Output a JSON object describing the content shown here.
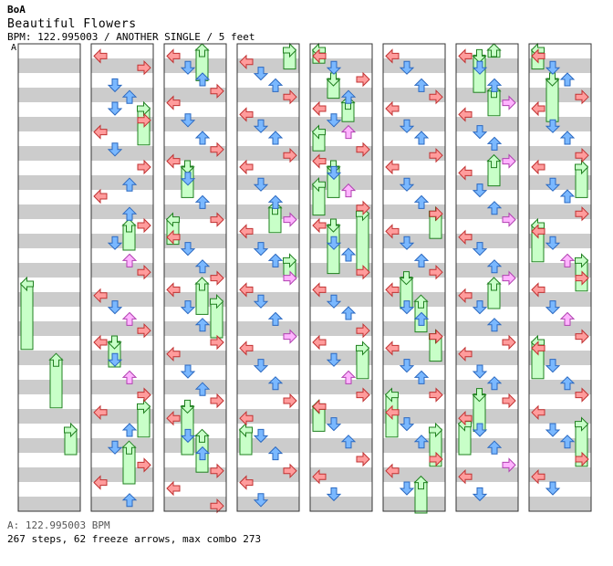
{
  "header": {
    "artist": "BoA",
    "title": "Beautiful Flowers",
    "meta": "BPM: 122.995003 / ANOTHER SINGLE / 5 feet",
    "marker": "A"
  },
  "footer": {
    "bpm_line": "A: 122.995003 BPM",
    "stats_line": "267 steps, 62 freeze arrows, max combo 273"
  },
  "chart_data": {
    "type": "step-chart",
    "lanes": [
      "left",
      "down",
      "up",
      "right"
    ],
    "colors": {
      "left_right": "#ff9c9c",
      "left_right_stroke": "#c03030",
      "down_up": "#7ab8ff",
      "down_up_stroke": "#2a68c0",
      "offbeat": "#ffb4ff",
      "offbeat_stroke": "#b040b0",
      "freeze": "#c8ffc8",
      "freeze_stroke": "#208020",
      "band": "#cccccc"
    },
    "measures_per_column": 8,
    "columns": [
      {
        "notes": [],
        "freezes": [
          [
            0,
            4.0,
            5.2
          ],
          [
            2,
            5.3,
            6.2
          ],
          [
            3,
            6.5,
            7.0
          ]
        ]
      },
      {
        "notes": [
          [
            0,
            0.1
          ],
          [
            3,
            0.3
          ],
          [
            1,
            0.6
          ],
          [
            2,
            0.8
          ],
          [
            1,
            1.0
          ],
          [
            3,
            1.2
          ],
          [
            0,
            1.4
          ],
          [
            1,
            1.7
          ],
          [
            3,
            2.0
          ],
          [
            2,
            2.3
          ],
          [
            0,
            2.5
          ],
          [
            2,
            2.8
          ],
          [
            3,
            3.0
          ],
          [
            1,
            3.3
          ],
          [
            2,
            3.6
          ],
          [
            3,
            3.8
          ],
          [
            0,
            4.2
          ],
          [
            1,
            4.4
          ],
          [
            2,
            4.6
          ],
          [
            3,
            4.8
          ],
          [
            0,
            5.0
          ],
          [
            1,
            5.3
          ],
          [
            2,
            5.6
          ],
          [
            3,
            5.9
          ],
          [
            0,
            6.2
          ],
          [
            2,
            6.5
          ],
          [
            1,
            6.8
          ],
          [
            3,
            7.1
          ],
          [
            0,
            7.4
          ],
          [
            2,
            7.7
          ]
        ],
        "freezes": [
          [
            3,
            1.0,
            1.7
          ],
          [
            2,
            3.0,
            3.5
          ],
          [
            1,
            5.0,
            5.5
          ],
          [
            3,
            6.1,
            6.7
          ],
          [
            2,
            6.8,
            7.5
          ]
        ]
      },
      {
        "notes": [
          [
            0,
            0.1
          ],
          [
            1,
            0.3
          ],
          [
            2,
            0.5
          ],
          [
            3,
            0.7
          ],
          [
            0,
            0.9
          ],
          [
            1,
            1.2
          ],
          [
            2,
            1.5
          ],
          [
            3,
            1.7
          ],
          [
            0,
            1.9
          ],
          [
            1,
            2.2
          ],
          [
            2,
            2.6
          ],
          [
            3,
            2.9
          ],
          [
            0,
            3.2
          ],
          [
            1,
            3.4
          ],
          [
            2,
            3.7
          ],
          [
            3,
            3.9
          ],
          [
            0,
            4.1
          ],
          [
            1,
            4.4
          ],
          [
            2,
            4.7
          ],
          [
            3,
            5.0
          ],
          [
            0,
            5.2
          ],
          [
            1,
            5.5
          ],
          [
            2,
            5.8
          ],
          [
            3,
            6.0
          ],
          [
            0,
            6.3
          ],
          [
            1,
            6.6
          ],
          [
            2,
            6.9
          ],
          [
            3,
            7.2
          ],
          [
            0,
            7.5
          ],
          [
            3,
            7.8
          ]
        ],
        "freezes": [
          [
            2,
            0.0,
            0.6
          ],
          [
            1,
            2.0,
            2.6
          ],
          [
            0,
            2.9,
            3.4
          ],
          [
            2,
            4.0,
            4.6
          ],
          [
            3,
            4.3,
            5.0
          ],
          [
            1,
            6.1,
            7.0
          ],
          [
            2,
            6.6,
            7.3
          ]
        ]
      },
      {
        "notes": [
          [
            0,
            0.2
          ],
          [
            1,
            0.4
          ],
          [
            2,
            0.6
          ],
          [
            3,
            0.8
          ],
          [
            0,
            1.1
          ],
          [
            1,
            1.3
          ],
          [
            2,
            1.5
          ],
          [
            3,
            1.8
          ],
          [
            0,
            2.0
          ],
          [
            1,
            2.3
          ],
          [
            2,
            2.6
          ],
          [
            3,
            2.9
          ],
          [
            0,
            3.1
          ],
          [
            1,
            3.4
          ],
          [
            2,
            3.6
          ],
          [
            3,
            3.9
          ],
          [
            0,
            4.1
          ],
          [
            1,
            4.3
          ],
          [
            2,
            4.6
          ],
          [
            3,
            4.9
          ],
          [
            0,
            5.1
          ],
          [
            1,
            5.4
          ],
          [
            2,
            5.7
          ],
          [
            3,
            6.0
          ],
          [
            0,
            6.3
          ],
          [
            1,
            6.6
          ],
          [
            2,
            6.9
          ],
          [
            3,
            7.2
          ],
          [
            0,
            7.4
          ],
          [
            1,
            7.7
          ]
        ],
        "freezes": [
          [
            3,
            0.0,
            0.4
          ],
          [
            2,
            2.7,
            3.2
          ],
          [
            3,
            3.6,
            4.0
          ],
          [
            0,
            6.5,
            7.0
          ]
        ]
      },
      {
        "notes": [
          [
            0,
            0.1
          ],
          [
            1,
            0.3
          ],
          [
            3,
            0.5
          ],
          [
            2,
            0.8
          ],
          [
            0,
            1.0
          ],
          [
            1,
            1.2
          ],
          [
            2,
            1.4
          ],
          [
            3,
            1.7
          ],
          [
            0,
            1.9
          ],
          [
            1,
            2.1
          ],
          [
            2,
            2.4
          ],
          [
            3,
            2.7
          ],
          [
            0,
            3.0
          ],
          [
            1,
            3.3
          ],
          [
            2,
            3.5
          ],
          [
            3,
            3.8
          ],
          [
            0,
            4.1
          ],
          [
            1,
            4.3
          ],
          [
            2,
            4.5
          ],
          [
            3,
            4.8
          ],
          [
            0,
            5.0
          ],
          [
            1,
            5.3
          ],
          [
            2,
            5.6
          ],
          [
            3,
            5.9
          ],
          [
            0,
            6.1
          ],
          [
            1,
            6.4
          ],
          [
            2,
            6.7
          ],
          [
            3,
            7.0
          ],
          [
            0,
            7.3
          ],
          [
            1,
            7.6
          ]
        ],
        "freezes": [
          [
            0,
            0.0,
            0.3
          ],
          [
            1,
            0.5,
            0.9
          ],
          [
            2,
            0.9,
            1.3
          ],
          [
            0,
            1.4,
            1.8
          ],
          [
            1,
            2.0,
            2.6
          ],
          [
            0,
            2.3,
            2.9
          ],
          [
            1,
            3.0,
            3.9
          ],
          [
            3,
            2.8,
            3.9
          ],
          [
            3,
            5.1,
            5.7
          ],
          [
            0,
            6.1,
            6.6
          ]
        ]
      },
      {
        "notes": [
          [
            0,
            0.1
          ],
          [
            1,
            0.3
          ],
          [
            2,
            0.6
          ],
          [
            3,
            0.8
          ],
          [
            0,
            1.0
          ],
          [
            1,
            1.3
          ],
          [
            2,
            1.5
          ],
          [
            3,
            1.8
          ],
          [
            0,
            2.0
          ],
          [
            1,
            2.3
          ],
          [
            2,
            2.6
          ],
          [
            3,
            2.8
          ],
          [
            0,
            3.1
          ],
          [
            1,
            3.3
          ],
          [
            2,
            3.6
          ],
          [
            3,
            3.8
          ],
          [
            0,
            4.1
          ],
          [
            1,
            4.4
          ],
          [
            2,
            4.6
          ],
          [
            3,
            4.9
          ],
          [
            0,
            5.1
          ],
          [
            1,
            5.4
          ],
          [
            2,
            5.6
          ],
          [
            3,
            5.9
          ],
          [
            0,
            6.2
          ],
          [
            1,
            6.4
          ],
          [
            2,
            6.7
          ],
          [
            3,
            7.0
          ],
          [
            0,
            7.2
          ],
          [
            1,
            7.5
          ]
        ],
        "freezes": [
          [
            3,
            2.8,
            3.3
          ],
          [
            1,
            3.9,
            4.5
          ],
          [
            2,
            4.3,
            4.9
          ],
          [
            3,
            4.9,
            5.4
          ],
          [
            0,
            5.9,
            6.7
          ],
          [
            3,
            6.5,
            7.2
          ],
          [
            2,
            7.4,
            8.0
          ]
        ]
      },
      {
        "notes": [
          [
            0,
            0.1
          ],
          [
            1,
            0.3
          ],
          [
            2,
            0.6
          ],
          [
            3,
            0.9
          ],
          [
            0,
            1.1
          ],
          [
            1,
            1.4
          ],
          [
            2,
            1.6
          ],
          [
            3,
            1.9
          ],
          [
            0,
            2.1
          ],
          [
            1,
            2.4
          ],
          [
            2,
            2.7
          ],
          [
            3,
            2.9
          ],
          [
            0,
            3.2
          ],
          [
            1,
            3.4
          ],
          [
            2,
            3.7
          ],
          [
            3,
            3.9
          ],
          [
            0,
            4.2
          ],
          [
            1,
            4.4
          ],
          [
            2,
            4.7
          ],
          [
            3,
            5.0
          ],
          [
            0,
            5.2
          ],
          [
            1,
            5.5
          ],
          [
            2,
            5.7
          ],
          [
            3,
            6.0
          ],
          [
            0,
            6.3
          ],
          [
            1,
            6.5
          ],
          [
            2,
            6.8
          ],
          [
            3,
            7.1
          ],
          [
            0,
            7.3
          ],
          [
            1,
            7.6
          ]
        ],
        "freezes": [
          [
            2,
            0.0,
            0.2
          ],
          [
            1,
            0.1,
            0.8
          ],
          [
            2,
            0.7,
            1.2
          ],
          [
            2,
            1.9,
            2.4
          ],
          [
            2,
            4.0,
            4.5
          ],
          [
            1,
            5.9,
            6.6
          ],
          [
            0,
            6.4,
            7.0
          ]
        ]
      },
      {
        "notes": [
          [
            0,
            0.1
          ],
          [
            1,
            0.3
          ],
          [
            2,
            0.5
          ],
          [
            3,
            0.8
          ],
          [
            0,
            1.0
          ],
          [
            1,
            1.3
          ],
          [
            2,
            1.5
          ],
          [
            3,
            1.8
          ],
          [
            0,
            2.0
          ],
          [
            1,
            2.3
          ],
          [
            2,
            2.5
          ],
          [
            3,
            2.8
          ],
          [
            0,
            3.1
          ],
          [
            1,
            3.3
          ],
          [
            2,
            3.6
          ],
          [
            3,
            3.9
          ],
          [
            0,
            4.1
          ],
          [
            1,
            4.4
          ],
          [
            2,
            4.6
          ],
          [
            3,
            4.9
          ],
          [
            0,
            5.1
          ],
          [
            1,
            5.4
          ],
          [
            2,
            5.7
          ],
          [
            3,
            5.9
          ],
          [
            0,
            6.2
          ],
          [
            1,
            6.5
          ],
          [
            2,
            6.7
          ],
          [
            3,
            7.0
          ],
          [
            0,
            7.3
          ],
          [
            1,
            7.5
          ]
        ],
        "freezes": [
          [
            0,
            0.0,
            0.4
          ],
          [
            1,
            0.5,
            1.3
          ],
          [
            3,
            2.0,
            2.6
          ],
          [
            0,
            3.0,
            3.7
          ],
          [
            3,
            3.6,
            4.2
          ],
          [
            0,
            5.0,
            5.7
          ],
          [
            3,
            6.4,
            7.2
          ]
        ]
      }
    ]
  }
}
